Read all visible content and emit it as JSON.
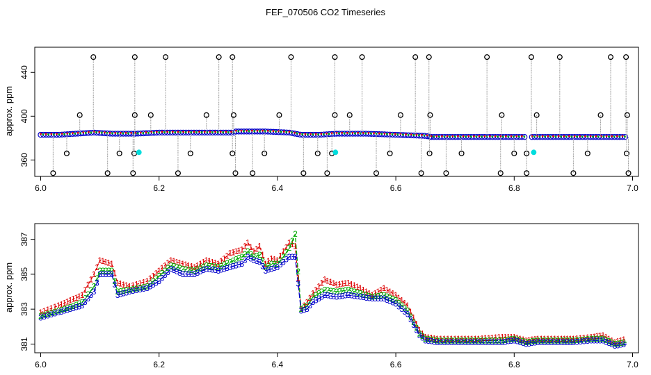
{
  "title": "FEF_070506  CO2 Timeseries",
  "colors": {
    "s1": "#dd0000",
    "s2": "#00aa00",
    "s3": "#0000cc",
    "flag": "#000000",
    "drop": "#00dddd",
    "stem": "#999999"
  },
  "chart_data": [
    {
      "type": "scatter",
      "ylabel": "approx. ppm",
      "xlim": [
        5.99,
        7.01
      ],
      "ylim": [
        345,
        463
      ],
      "xticks": [
        "6.0",
        "6.2",
        "6.4",
        "6.6",
        "6.8",
        "7.0"
      ],
      "yticks": [
        "360",
        "400",
        "440"
      ],
      "base_segments": [
        {
          "x": [
            6.0,
            6.03,
            6.06,
            6.09,
            6.12,
            6.16
          ],
          "y": [
            383,
            383,
            384,
            385,
            384,
            384
          ]
        },
        {
          "x": [
            6.16,
            6.2,
            6.25,
            6.3,
            6.33
          ],
          "y": [
            384,
            385,
            385,
            385,
            385
          ]
        },
        {
          "x": [
            6.33,
            6.38,
            6.42,
            6.44,
            6.47,
            6.5
          ],
          "y": [
            386,
            386,
            385,
            383,
            383,
            384
          ]
        },
        {
          "x": [
            6.5,
            6.55,
            6.6,
            6.65,
            6.66
          ],
          "y": [
            384,
            384,
            383,
            382,
            381
          ]
        },
        {
          "x": [
            6.66,
            6.72,
            6.78,
            6.82
          ],
          "y": [
            381,
            381,
            381,
            381
          ]
        },
        {
          "x": [
            6.83,
            6.9,
            6.95,
            6.99
          ],
          "y": [
            381,
            381,
            381,
            381
          ]
        }
      ],
      "spikes_high": [
        6.089,
        6.159,
        6.211,
        6.301,
        6.324,
        6.423,
        6.497,
        6.543,
        6.633,
        6.656,
        6.754,
        6.829,
        6.877,
        6.963,
        6.989
      ],
      "spikes_400": [
        6.066,
        6.159,
        6.186,
        6.28,
        6.326,
        6.403,
        6.497,
        6.522,
        6.608,
        6.658,
        6.779,
        6.838,
        6.946,
        6.991
      ],
      "spikes_365": [
        6.044,
        6.133,
        6.158,
        6.253,
        6.324,
        6.378,
        6.468,
        6.492,
        6.59,
        6.657,
        6.711,
        6.8,
        6.821,
        6.924,
        6.99
      ],
      "spikes_350": [
        6.021,
        6.113,
        6.156,
        6.232,
        6.329,
        6.358,
        6.444,
        6.484,
        6.567,
        6.643,
        6.685,
        6.777,
        6.821,
        6.9,
        6.993
      ],
      "dropouts": [
        {
          "x": 6.166,
          "y": 367
        },
        {
          "x": 6.498,
          "y": 367
        },
        {
          "x": 6.833,
          "y": 367
        }
      ]
    },
    {
      "type": "line",
      "ylabel": "approx. ppm",
      "xlim": [
        5.99,
        7.01
      ],
      "ylim": [
        380.5,
        387.9
      ],
      "xticks": [
        "6.0",
        "6.2",
        "6.4",
        "6.6",
        "6.8",
        "7.0"
      ],
      "yticks": [
        "381",
        "383",
        "385",
        "387"
      ],
      "x": [
        6.0,
        6.03,
        6.05,
        6.07,
        6.09,
        6.1,
        6.12,
        6.13,
        6.15,
        6.18,
        6.2,
        6.22,
        6.24,
        6.26,
        6.28,
        6.3,
        6.32,
        6.34,
        6.35,
        6.36,
        6.37,
        6.38,
        6.39,
        6.4,
        6.41,
        6.42,
        6.43,
        6.44,
        6.45,
        6.46,
        6.48,
        6.5,
        6.52,
        6.54,
        6.56,
        6.58,
        6.6,
        6.62,
        6.64,
        6.65,
        6.67,
        6.7,
        6.74,
        6.78,
        6.8,
        6.82,
        6.84,
        6.88,
        6.9,
        6.93,
        6.95,
        6.97,
        6.99
      ],
      "series": [
        {
          "label": "1",
          "values": [
            382.8,
            383.2,
            383.5,
            383.8,
            385.0,
            385.8,
            385.6,
            384.5,
            384.3,
            384.6,
            385.2,
            385.8,
            385.6,
            385.4,
            385.8,
            385.6,
            386.2,
            386.4,
            386.8,
            386.3,
            386.6,
            385.6,
            385.9,
            385.8,
            386.3,
            386.8,
            386.6,
            383.0,
            383.4,
            383.9,
            384.7,
            384.4,
            384.5,
            384.2,
            383.8,
            384.2,
            383.8,
            383.2,
            381.8,
            381.4,
            381.3,
            381.3,
            381.3,
            381.4,
            381.4,
            381.2,
            381.3,
            381.3,
            381.3,
            381.4,
            381.5,
            381.1,
            381.3
          ]
        },
        {
          "label": "2",
          "values": [
            382.6,
            382.9,
            383.1,
            383.4,
            384.3,
            385.2,
            385.2,
            384.0,
            384.1,
            384.3,
            384.9,
            385.5,
            385.3,
            385.2,
            385.5,
            385.4,
            385.7,
            386.0,
            386.3,
            386.0,
            386.1,
            385.4,
            385.6,
            385.6,
            386.0,
            386.5,
            387.3,
            383.0,
            383.2,
            383.7,
            384.1,
            384.0,
            384.1,
            383.9,
            383.7,
            383.8,
            383.5,
            382.9,
            381.6,
            381.3,
            381.2,
            381.2,
            381.2,
            381.2,
            381.3,
            381.1,
            381.2,
            381.2,
            381.2,
            381.3,
            381.3,
            381.0,
            381.1
          ]
        },
        {
          "label": "3",
          "values": [
            382.5,
            382.8,
            383.0,
            383.2,
            384.0,
            385.0,
            385.0,
            383.8,
            384.0,
            384.2,
            384.6,
            385.3,
            385.0,
            385.0,
            385.3,
            385.2,
            385.4,
            385.6,
            386.0,
            385.8,
            385.7,
            385.2,
            385.3,
            385.4,
            385.7,
            386.0,
            386.0,
            382.9,
            383.0,
            383.4,
            383.8,
            383.7,
            383.8,
            383.7,
            383.6,
            383.6,
            383.3,
            382.7,
            381.5,
            381.2,
            381.1,
            381.1,
            381.1,
            381.1,
            381.2,
            381.0,
            381.1,
            381.1,
            381.1,
            381.2,
            381.2,
            380.9,
            381.0
          ]
        }
      ]
    }
  ]
}
